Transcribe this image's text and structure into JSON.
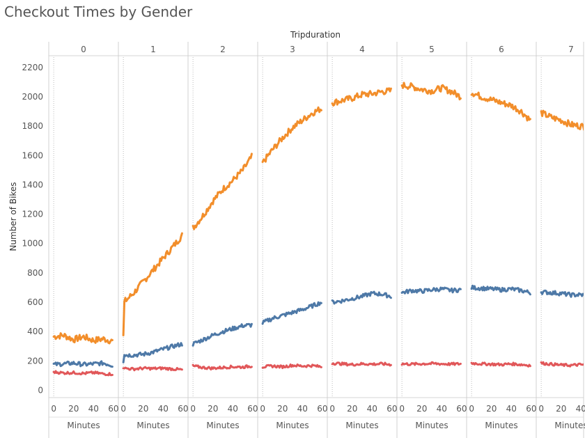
{
  "chart_data": {
    "type": "line",
    "title": "Checkout Times by Gender",
    "column_header": "Tripduration",
    "ylabel": "Number of Bikes",
    "xlabel": "Minutes",
    "ylim": [
      -50,
      2280
    ],
    "xlim": [
      -5,
      65
    ],
    "y_ticks": [
      0,
      200,
      400,
      600,
      800,
      1000,
      1200,
      1400,
      1600,
      1800,
      2000,
      2200
    ],
    "x_ticks": [
      0,
      20,
      40,
      60
    ],
    "x_ticks_last_panel": [
      0,
      20,
      40
    ],
    "panels": [
      "0",
      "1",
      "2",
      "3",
      "4",
      "5",
      "6",
      "7"
    ],
    "colors": {
      "series1": "#f28e2b",
      "series2": "#4e79a7",
      "series3": "#e15759"
    },
    "series": [
      {
        "color": "#f28e2b",
        "panels": [
          {
            "x": [
              0,
              10,
              20,
              30,
              40,
              50,
              59
            ],
            "y": [
              365,
              375,
              345,
              365,
              340,
              350,
              335
            ]
          },
          {
            "x": [
              0,
              1,
              3,
              10,
              20,
              30,
              40,
              50,
              59
            ],
            "y": [
              375,
              605,
              615,
              660,
              740,
              820,
              900,
              980,
              1055
            ]
          },
          {
            "x": [
              0,
              10,
              20,
              30,
              40,
              50,
              59
            ],
            "y": [
              1105,
              1190,
              1290,
              1370,
              1430,
              1500,
              1590
            ]
          },
          {
            "x": [
              0,
              10,
              20,
              30,
              40,
              50,
              59
            ],
            "y": [
              1550,
              1640,
              1720,
              1790,
              1840,
              1890,
              1920
            ]
          },
          {
            "x": [
              0,
              10,
              20,
              30,
              40,
              50,
              59
            ],
            "y": [
              1960,
              1975,
              1990,
              2015,
              2020,
              2035,
              2040
            ]
          },
          {
            "x": [
              0,
              10,
              20,
              30,
              40,
              50,
              59
            ],
            "y": [
              2080,
              2070,
              2050,
              2040,
              2060,
              2035,
              2000
            ]
          },
          {
            "x": [
              0,
              10,
              20,
              30,
              40,
              50,
              59
            ],
            "y": [
              2030,
              2000,
              1980,
              1960,
              1940,
              1900,
              1840
            ]
          },
          {
            "x": [
              0,
              10,
              20,
              30,
              40,
              50,
              59
            ],
            "y": [
              1890,
              1860,
              1840,
              1810,
              1800,
              1790,
              1780
            ]
          }
        ]
      },
      {
        "color": "#4e79a7",
        "panels": [
          {
            "x": [
              0,
              10,
              20,
              30,
              40,
              50,
              59
            ],
            "y": [
              175,
              180,
              185,
              175,
              180,
              185,
              170
            ]
          },
          {
            "x": [
              0,
              1,
              10,
              20,
              30,
              40,
              50,
              59
            ],
            "y": [
              190,
              240,
              240,
              245,
              260,
              280,
              300,
              315
            ]
          },
          {
            "x": [
              0,
              10,
              20,
              30,
              40,
              50,
              59
            ],
            "y": [
              315,
              345,
              375,
              400,
              420,
              440,
              445
            ]
          },
          {
            "x": [
              0,
              10,
              20,
              30,
              40,
              50,
              59
            ],
            "y": [
              460,
              490,
              510,
              530,
              550,
              575,
              600
            ]
          },
          {
            "x": [
              0,
              10,
              20,
              30,
              40,
              50,
              59
            ],
            "y": [
              600,
              610,
              625,
              640,
              660,
              655,
              640
            ]
          },
          {
            "x": [
              0,
              10,
              20,
              30,
              40,
              50,
              59
            ],
            "y": [
              665,
              680,
              675,
              685,
              690,
              680,
              685
            ]
          },
          {
            "x": [
              0,
              10,
              20,
              30,
              40,
              50,
              59
            ],
            "y": [
              700,
              695,
              690,
              685,
              690,
              680,
              665
            ]
          },
          {
            "x": [
              0,
              10,
              20,
              30,
              40,
              50,
              59
            ],
            "y": [
              670,
              665,
              660,
              650,
              650,
              645,
              655
            ]
          }
        ]
      },
      {
        "color": "#e15759",
        "panels": [
          {
            "x": [
              0,
              10,
              20,
              30,
              40,
              50,
              59
            ],
            "y": [
              125,
              118,
              120,
              115,
              120,
              112,
              110
            ]
          },
          {
            "x": [
              0,
              10,
              20,
              30,
              40,
              50,
              59
            ],
            "y": [
              150,
              145,
              150,
              148,
              150,
              145,
              140
            ]
          },
          {
            "x": [
              0,
              10,
              20,
              30,
              40,
              50,
              59
            ],
            "y": [
              165,
              155,
              150,
              155,
              160,
              158,
              165
            ]
          },
          {
            "x": [
              0,
              10,
              20,
              30,
              40,
              50,
              59
            ],
            "y": [
              160,
              165,
              160,
              170,
              165,
              168,
              160
            ]
          },
          {
            "x": [
              0,
              10,
              20,
              30,
              40,
              50,
              59
            ],
            "y": [
              185,
              180,
              175,
              180,
              178,
              180,
              175
            ]
          },
          {
            "x": [
              0,
              10,
              20,
              30,
              40,
              50,
              59
            ],
            "y": [
              180,
              178,
              180,
              182,
              180,
              178,
              180
            ]
          },
          {
            "x": [
              0,
              10,
              20,
              30,
              40,
              50,
              59
            ],
            "y": [
              185,
              180,
              178,
              175,
              180,
              175,
              170
            ]
          },
          {
            "x": [
              0,
              10,
              20,
              30,
              40,
              50,
              59
            ],
            "y": [
              185,
              178,
              172,
              170,
              175,
              170,
              165
            ]
          }
        ]
      }
    ]
  }
}
